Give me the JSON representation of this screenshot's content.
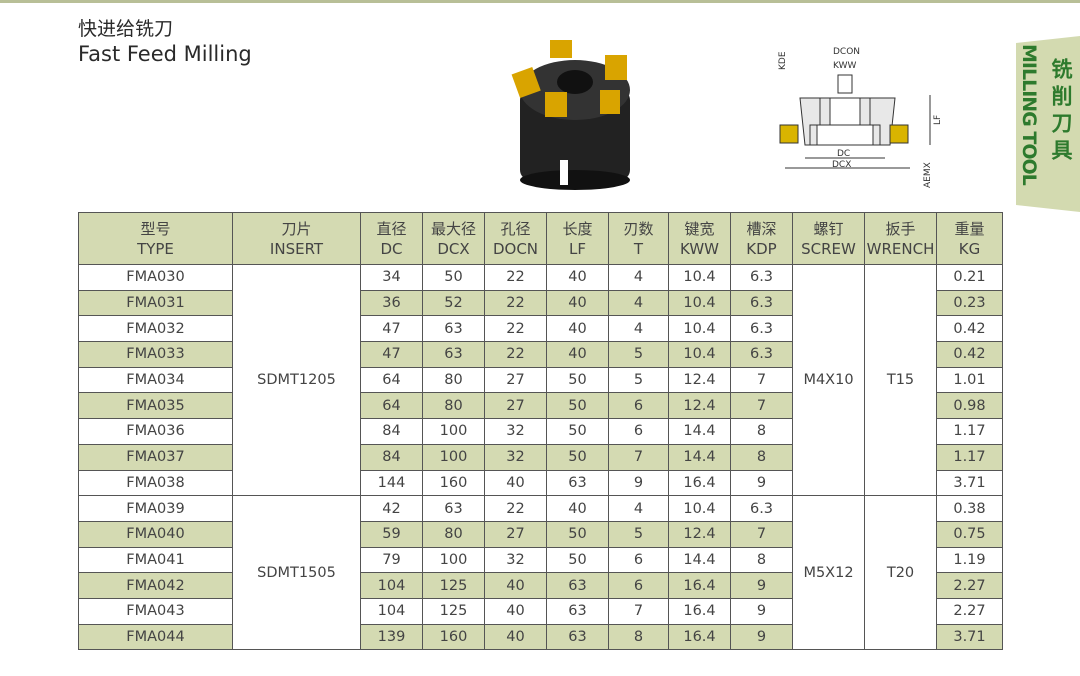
{
  "title": {
    "cn": "快进给铣刀",
    "en": "Fast Feed Milling"
  },
  "side_tab": {
    "cn": "铣削刀具",
    "en": "MILLING TOOL"
  },
  "diagram": {
    "labels": {
      "kde": "KDE",
      "dcon": "DCON",
      "kww": "KWW",
      "lf": "LF",
      "dc": "DC",
      "dcx": "DCX",
      "aemx": "AEMX"
    }
  },
  "colors": {
    "header": "#d4dab2",
    "accent": "#2d7a2d"
  },
  "table": {
    "headers": [
      [
        "型号",
        "TYPE"
      ],
      [
        "刀片",
        "INSERT"
      ],
      [
        "直径",
        "DC"
      ],
      [
        "最大径",
        "DCX"
      ],
      [
        "孔径",
        "DOCN"
      ],
      [
        "长度",
        "LF"
      ],
      [
        "刃数",
        "T"
      ],
      [
        "键宽",
        "KWW"
      ],
      [
        "槽深",
        "KDP"
      ],
      [
        "螺钉",
        "SCREW"
      ],
      [
        "扳手",
        "WRENCH"
      ],
      [
        "重量",
        "KG"
      ]
    ],
    "groups": [
      {
        "insert": "SDMT1205",
        "screw": "M4X10",
        "wrench": "T15",
        "rows": [
          [
            "FMA030",
            "34",
            "50",
            "22",
            "40",
            "4",
            "10.4",
            "6.3",
            "0.21"
          ],
          [
            "FMA031",
            "36",
            "52",
            "22",
            "40",
            "4",
            "10.4",
            "6.3",
            "0.23"
          ],
          [
            "FMA032",
            "47",
            "63",
            "22",
            "40",
            "4",
            "10.4",
            "6.3",
            "0.42"
          ],
          [
            "FMA033",
            "47",
            "63",
            "22",
            "40",
            "5",
            "10.4",
            "6.3",
            "0.42"
          ],
          [
            "FMA034",
            "64",
            "80",
            "27",
            "50",
            "5",
            "12.4",
            "7",
            "1.01"
          ],
          [
            "FMA035",
            "64",
            "80",
            "27",
            "50",
            "6",
            "12.4",
            "7",
            "0.98"
          ],
          [
            "FMA036",
            "84",
            "100",
            "32",
            "50",
            "6",
            "14.4",
            "8",
            "1.17"
          ],
          [
            "FMA037",
            "84",
            "100",
            "32",
            "50",
            "7",
            "14.4",
            "8",
            "1.17"
          ],
          [
            "FMA038",
            "144",
            "160",
            "40",
            "63",
            "9",
            "16.4",
            "9",
            "3.71"
          ]
        ]
      },
      {
        "insert": "SDMT1505",
        "screw": "M5X12",
        "wrench": "T20",
        "rows": [
          [
            "FMA039",
            "42",
            "63",
            "22",
            "40",
            "4",
            "10.4",
            "6.3",
            "0.38"
          ],
          [
            "FMA040",
            "59",
            "80",
            "27",
            "50",
            "5",
            "12.4",
            "7",
            "0.75"
          ],
          [
            "FMA041",
            "79",
            "100",
            "32",
            "50",
            "6",
            "14.4",
            "8",
            "1.19"
          ],
          [
            "FMA042",
            "104",
            "125",
            "40",
            "63",
            "6",
            "16.4",
            "9",
            "2.27"
          ],
          [
            "FMA043",
            "104",
            "125",
            "40",
            "63",
            "7",
            "16.4",
            "9",
            "2.27"
          ],
          [
            "FMA044",
            "139",
            "160",
            "40",
            "63",
            "8",
            "16.4",
            "9",
            "3.71"
          ]
        ]
      }
    ]
  }
}
